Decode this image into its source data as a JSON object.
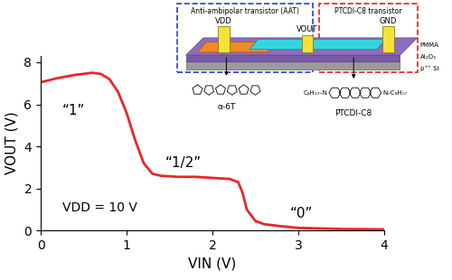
{
  "chart_data": {
    "type": "line",
    "x": [
      0,
      0.2,
      0.4,
      0.6,
      0.7,
      0.8,
      0.9,
      1.0,
      1.1,
      1.2,
      1.3,
      1.4,
      1.6,
      1.8,
      2.0,
      2.2,
      2.3,
      2.35,
      2.4,
      2.5,
      2.6,
      2.8,
      3.0,
      3.5,
      4.0
    ],
    "values": [
      7.05,
      7.25,
      7.4,
      7.5,
      7.45,
      7.2,
      6.6,
      5.6,
      4.3,
      3.2,
      2.7,
      2.6,
      2.55,
      2.55,
      2.5,
      2.45,
      2.3,
      1.8,
      1.0,
      0.45,
      0.3,
      0.2,
      0.12,
      0.07,
      0.05
    ],
    "color": "#e8262a",
    "x_label": "VIN (V)",
    "y_label": "VOUT (V)",
    "xlim": [
      0,
      4
    ],
    "xticks": [
      0,
      1,
      2,
      3,
      4
    ],
    "ylim": [
      0,
      8.3
    ],
    "yticks": [
      0,
      2,
      4,
      6,
      8
    ],
    "grid": false,
    "annotations": [
      "“1”",
      "“1/2”",
      "“0”",
      "VDD = 10 V"
    ]
  },
  "inset": {
    "aat_box": "Anti-ambipolar transistor (AAT)",
    "ptcdi_box": "PTCDI-C8 transistor",
    "vdd": "VDD",
    "vout": "VOUT",
    "gnd": "GND",
    "layers": [
      "PMMA",
      "Al₂O₃",
      "p⁺⁺ Si"
    ],
    "molecule_left": "α-6T",
    "molecule_right": "PTCDI-C8",
    "substituent_left": "C₈H₁₇–N",
    "substituent_right": "N–C₈H₁₇"
  }
}
